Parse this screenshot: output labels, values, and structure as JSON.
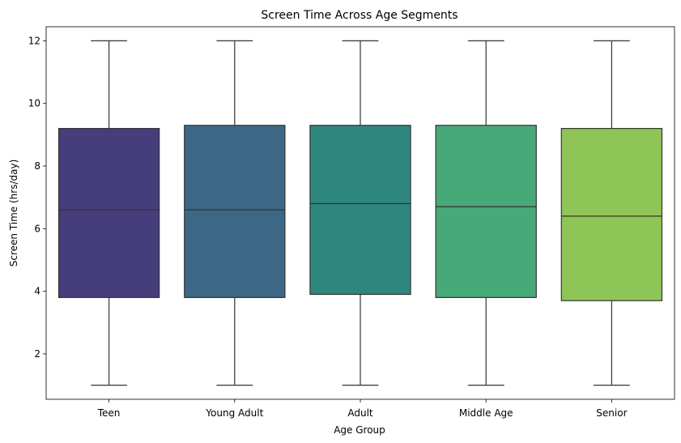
{
  "chart_data": {
    "type": "boxplot",
    "title": "Screen Time Across Age Segments",
    "xlabel": "Age Group",
    "ylabel": "Screen Time (hrs/day)",
    "ylim": [
      0.55,
      12.45
    ],
    "yticks": [
      2,
      4,
      6,
      8,
      10,
      12
    ],
    "grid": false,
    "categories": [
      "Teen",
      "Young Adult",
      "Adult",
      "Middle Age",
      "Senior"
    ],
    "series": [
      {
        "category": "Teen",
        "whisker_low": 1.0,
        "q1": 3.8,
        "median": 6.6,
        "q3": 9.2,
        "whisker_high": 12.0,
        "color": "#463e7c"
      },
      {
        "category": "Young Adult",
        "whisker_low": 1.0,
        "q1": 3.8,
        "median": 6.6,
        "q3": 9.3,
        "whisker_high": 12.0,
        "color": "#3c6886"
      },
      {
        "category": "Adult",
        "whisker_low": 1.0,
        "q1": 3.9,
        "median": 6.8,
        "q3": 9.3,
        "whisker_high": 12.0,
        "color": "#2d877f"
      },
      {
        "category": "Middle Age",
        "whisker_low": 1.0,
        "q1": 3.8,
        "median": 6.7,
        "q3": 9.3,
        "whisker_high": 12.0,
        "color": "#47a978"
      },
      {
        "category": "Senior",
        "whisker_low": 1.0,
        "q1": 3.7,
        "median": 6.4,
        "q3": 9.2,
        "whisker_high": 12.0,
        "color": "#8fc556"
      }
    ]
  }
}
